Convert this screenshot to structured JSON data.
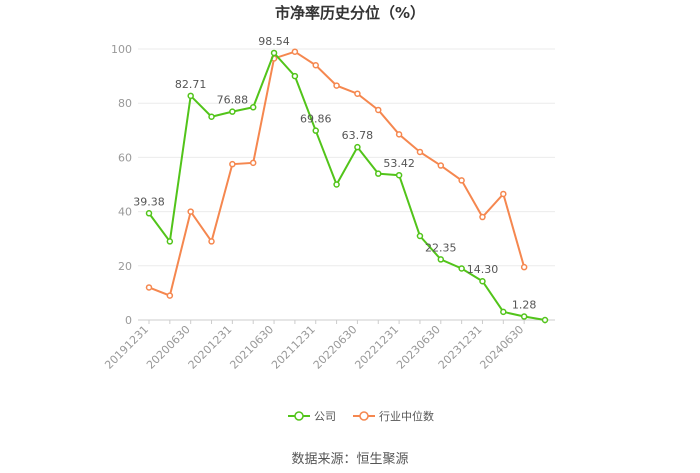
{
  "chart_data": {
    "type": "line",
    "title": "市净率历史分位（%）",
    "source": "数据来源：恒生聚源",
    "ylim": [
      0,
      100
    ],
    "yticks": [
      0,
      20,
      40,
      60,
      80,
      100
    ],
    "categories": [
      "20191231",
      "20200331",
      "20200630",
      "20200930",
      "20201231",
      "20210331",
      "20210630",
      "20210930",
      "20211231",
      "20220331",
      "20220630",
      "20220930",
      "20221231",
      "20230331",
      "20230630",
      "20230930",
      "20231231",
      "20240331",
      "20240630",
      "20240930"
    ],
    "xtick_labels": [
      "20191231",
      "20200630",
      "20201231",
      "20210630",
      "20211231",
      "20220630",
      "20221231",
      "20230630",
      "20231231",
      "20240630"
    ],
    "series": [
      {
        "name": "公司",
        "color": "#52c41a",
        "values": [
          39.38,
          29.0,
          82.71,
          75.0,
          76.88,
          78.5,
          98.54,
          90.0,
          69.86,
          50.0,
          63.78,
          54.0,
          53.42,
          31.0,
          22.35,
          19.0,
          14.3,
          3.0,
          1.28,
          0.0
        ],
        "labels": {
          "0": "39.38",
          "2": "82.71",
          "4": "76.88",
          "6": "98.54",
          "8": "69.86",
          "10": "63.78",
          "12": "53.42",
          "14": "22.35",
          "16": "14.30",
          "18": "1.28"
        }
      },
      {
        "name": "行业中位数",
        "color": "#f5874f",
        "values": [
          12.0,
          9.0,
          40.0,
          29.0,
          57.5,
          58.0,
          96.5,
          99.0,
          94.0,
          86.5,
          83.5,
          77.5,
          68.5,
          62.0,
          57.0,
          51.5,
          38.0,
          46.5,
          19.5,
          null
        ]
      }
    ],
    "legend_position": "bottom",
    "grid": true
  }
}
